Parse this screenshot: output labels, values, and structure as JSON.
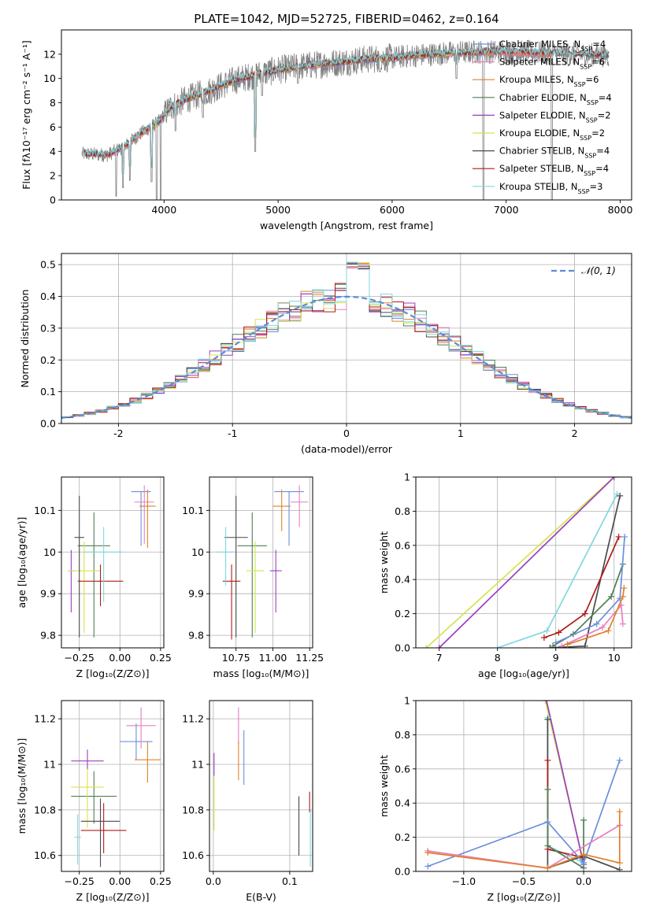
{
  "figure": {
    "title": "PLATE=1042, MJD=52725, FIBERID=0462, z=0.164"
  },
  "colors": {
    "chabrier_miles": "#6a8fdc",
    "salpeter_miles": "#e67fbf",
    "kroupa_miles": "#e0802a",
    "chabrier_elodie": "#4e7f55",
    "salpeter_elodie": "#9a3fc0",
    "kroupa_elodie": "#d7e34a",
    "chabrier_stelib": "#4a4a4a",
    "salpeter_stelib": "#b01b1b",
    "kroupa_stelib": "#7fd8df",
    "data": "#808080",
    "gauss": "#5b8bd8"
  },
  "chart_data": [
    {
      "id": "spectrum",
      "type": "line",
      "xlabel": "wavelength [Angstrom, rest frame]",
      "ylabel": "Flux [fλ10⁻¹⁷ erg cm⁻² s⁻¹ A⁻¹]",
      "xlim": [
        3100,
        8100
      ],
      "ylim": [
        0,
        14
      ],
      "xticks": [
        4000,
        5000,
        6000,
        7000,
        8000
      ],
      "yticks": [
        0,
        2,
        4,
        6,
        8,
        10,
        12
      ],
      "grid": false,
      "legend_position": "top-right",
      "legend": [
        {
          "label": "Chabrier MILES, N",
          "sub": "SSP",
          "tail": "=4",
          "key": "chabrier_miles"
        },
        {
          "label": "Salpeter MILES, N",
          "sub": "SSP",
          "tail": "=6",
          "key": "salpeter_miles"
        },
        {
          "label": "Kroupa MILES, N",
          "sub": "SSP",
          "tail": "=6",
          "key": "kroupa_miles"
        },
        {
          "label": "Chabrier ELODIE, N",
          "sub": "SSP",
          "tail": "=4",
          "key": "chabrier_elodie"
        },
        {
          "label": "Salpeter ELODIE, N",
          "sub": "SSP",
          "tail": "=2",
          "key": "salpeter_elodie"
        },
        {
          "label": "Kroupa ELODIE, N",
          "sub": "SSP",
          "tail": "=2",
          "key": "kroupa_elodie"
        },
        {
          "label": "Chabrier STELIB, N",
          "sub": "SSP",
          "tail": "=4",
          "key": "chabrier_stelib"
        },
        {
          "label": "Salpeter STELIB, N",
          "sub": "SSP",
          "tail": "=4",
          "key": "salpeter_stelib"
        },
        {
          "label": "Kroupa STELIB, N",
          "sub": "SSP",
          "tail": "=3",
          "key": "kroupa_stelib"
        }
      ],
      "continuum": [
        [
          3280,
          3.8
        ],
        [
          3500,
          3.7
        ],
        [
          3650,
          4.4
        ],
        [
          3800,
          5.5
        ],
        [
          3950,
          6.4
        ],
        [
          4050,
          7.6
        ],
        [
          4200,
          8.3
        ],
        [
          4400,
          9.0
        ],
        [
          4600,
          9.8
        ],
        [
          4800,
          10.3
        ],
        [
          5000,
          10.7
        ],
        [
          5200,
          11.0
        ],
        [
          5500,
          11.3
        ],
        [
          5800,
          11.6
        ],
        [
          6000,
          11.7
        ],
        [
          6200,
          11.9
        ],
        [
          6500,
          12.1
        ],
        [
          6800,
          12.2
        ],
        [
          7000,
          12.2
        ],
        [
          7300,
          12.1
        ],
        [
          7600,
          12.0
        ],
        [
          7900,
          11.9
        ]
      ],
      "dips": [
        [
          3580,
          0.3
        ],
        [
          3640,
          1.0
        ],
        [
          3700,
          1.6
        ],
        [
          3890,
          1.5
        ],
        [
          3935,
          0.0
        ],
        [
          3970,
          0.0
        ],
        [
          4100,
          5.7
        ],
        [
          4340,
          6.8
        ],
        [
          4800,
          4.0
        ],
        [
          4860,
          8.6
        ],
        [
          5175,
          9.6
        ],
        [
          5890,
          10.6
        ],
        [
          6563,
          10.0
        ],
        [
          6800,
          0.0
        ],
        [
          7400,
          0.0
        ]
      ]
    },
    {
      "id": "residuals",
      "type": "histogram",
      "xlabel": "(data-model)/error",
      "ylabel": "Normed distribution",
      "xlim": [
        -2.5,
        2.5
      ],
      "ylim": [
        0,
        0.535
      ],
      "xticks": [
        -2,
        -1,
        0,
        1,
        2
      ],
      "yticks": [
        0.0,
        0.1,
        0.2,
        0.3,
        0.4,
        0.5
      ],
      "grid": true,
      "legend_position": "top-right",
      "legend_label": "𝒩(0, 1)",
      "bin_width": 0.1
    },
    {
      "id": "age_vs_Z",
      "type": "errorbar",
      "xlabel": "Z [log₁₀(Z/Z⊙)]",
      "ylabel": "age  [log₁₀(age/yr)]",
      "xlim": [
        -0.36,
        0.27
      ],
      "ylim": [
        9.77,
        10.18
      ],
      "xticks": [
        -0.25,
        0.0,
        0.25
      ],
      "xticklabels": [
        "−0.25",
        "0.00",
        "0.25"
      ],
      "yticks": [
        9.8,
        9.9,
        10.0,
        10.1
      ],
      "grid": true,
      "points": [
        {
          "key": "chabrier_miles",
          "x": 0.13,
          "xerr": 0.06,
          "y": 10.145,
          "yerr": [
            0.13,
            0.0
          ]
        },
        {
          "key": "salpeter_miles",
          "x": 0.15,
          "xerr": 0.06,
          "y": 10.12,
          "yerr": [
            0.1,
            0.04
          ]
        },
        {
          "key": "kroupa_miles",
          "x": 0.17,
          "xerr": 0.05,
          "y": 10.11,
          "yerr": [
            0.1,
            0.04
          ]
        },
        {
          "key": "chabrier_elodie",
          "x": -0.16,
          "xerr": 0.1,
          "y": 10.015,
          "yerr": [
            0.22,
            0.08
          ]
        },
        {
          "key": "salpeter_elodie",
          "x": -0.3,
          "xerr": 0.02,
          "y": 9.955,
          "yerr": [
            0.1,
            0.05
          ]
        },
        {
          "key": "kroupa_elodie",
          "x": -0.22,
          "xerr": 0.1,
          "y": 9.955,
          "yerr": [
            0.15,
            0.07
          ]
        },
        {
          "key": "chabrier_stelib",
          "x": -0.25,
          "xerr": 0.03,
          "y": 10.035,
          "yerr": [
            0.24,
            0.1
          ]
        },
        {
          "key": "salpeter_stelib",
          "x": -0.12,
          "xerr": 0.14,
          "y": 9.93,
          "yerr": [
            0.06,
            0.04
          ]
        },
        {
          "key": "kroupa_stelib",
          "x": -0.1,
          "xerr": 0.12,
          "y": 10.0,
          "yerr": [
            0.12,
            0.06
          ]
        }
      ]
    },
    {
      "id": "age_vs_mass",
      "type": "errorbar",
      "xlabel": "mass [log₁₀(M/M⊙)]",
      "ylabel": "",
      "xlim": [
        10.57,
        11.27
      ],
      "ylim": [
        9.77,
        10.18
      ],
      "xticks": [
        10.75,
        11.0,
        11.25
      ],
      "xticklabels": [
        "10.75",
        "11.00",
        "11.25"
      ],
      "yticks": [
        9.8,
        9.9,
        10.0,
        10.1
      ],
      "grid": true,
      "points": [
        {
          "key": "chabrier_miles",
          "x": 11.11,
          "xerr": 0.1,
          "y": 10.145,
          "yerr": [
            0.13,
            0.0
          ]
        },
        {
          "key": "salpeter_miles",
          "x": 11.18,
          "xerr": 0.06,
          "y": 10.12,
          "yerr": [
            0.06,
            0.04
          ]
        },
        {
          "key": "kroupa_miles",
          "x": 11.06,
          "xerr": 0.06,
          "y": 10.11,
          "yerr": [
            0.06,
            0.04
          ]
        },
        {
          "key": "chabrier_elodie",
          "x": 10.86,
          "xerr": 0.1,
          "y": 10.015,
          "yerr": [
            0.22,
            0.08
          ]
        },
        {
          "key": "salpeter_elodie",
          "x": 11.02,
          "xerr": 0.04,
          "y": 9.955,
          "yerr": [
            0.1,
            0.05
          ]
        },
        {
          "key": "kroupa_elodie",
          "x": 10.88,
          "xerr": 0.06,
          "y": 9.955,
          "yerr": [
            0.15,
            0.07
          ]
        },
        {
          "key": "chabrier_stelib",
          "x": 10.75,
          "xerr": 0.08,
          "y": 10.035,
          "yerr": [
            0.24,
            0.1
          ]
        },
        {
          "key": "salpeter_stelib",
          "x": 10.72,
          "xerr": 0.06,
          "y": 9.93,
          "yerr": [
            0.14,
            0.04
          ]
        },
        {
          "key": "kroupa_stelib",
          "x": 10.68,
          "xerr": 0.06,
          "y": 10.0,
          "yerr": [
            0.08,
            0.06
          ]
        }
      ]
    },
    {
      "id": "weight_vs_age",
      "type": "line",
      "xlabel": "age  [log₁₀(age/yr)]",
      "ylabel": "mass weight",
      "xlim": [
        6.6,
        10.3
      ],
      "ylim": [
        0,
        1.0
      ],
      "xticks": [
        7,
        8,
        9,
        10
      ],
      "yticks": [
        0.0,
        0.2,
        0.4,
        0.6,
        0.8,
        1.0
      ],
      "grid": true,
      "series": [
        {
          "key": "kroupa_elodie",
          "x": [
            6.78,
            10.0
          ],
          "y": [
            0.0,
            1.0
          ]
        },
        {
          "key": "salpeter_elodie",
          "x": [
            7.0,
            10.0
          ],
          "y": [
            0.0,
            1.0
          ]
        },
        {
          "key": "kroupa_stelib",
          "x": [
            8.0,
            8.85,
            10.05
          ],
          "y": [
            0.0,
            0.1,
            0.9
          ]
        },
        {
          "key": "chabrier_stelib",
          "x": [
            8.9,
            9.5,
            10.1
          ],
          "y": [
            0.0,
            0.01,
            0.89
          ]
        },
        {
          "key": "salpeter_stelib",
          "x": [
            8.8,
            9.05,
            9.5,
            10.08
          ],
          "y": [
            0.06,
            0.09,
            0.2,
            0.65
          ]
        },
        {
          "key": "chabrier_elodie",
          "x": [
            8.95,
            9.3,
            9.95,
            10.15
          ],
          "y": [
            0.01,
            0.08,
            0.3,
            0.49
          ]
        },
        {
          "key": "chabrier_miles",
          "x": [
            9.0,
            9.7,
            10.1,
            10.18
          ],
          "y": [
            0.03,
            0.14,
            0.29,
            0.65
          ]
        },
        {
          "key": "salpeter_miles",
          "x": [
            9.1,
            9.8,
            10.12,
            10.15
          ],
          "y": [
            0.01,
            0.12,
            0.25,
            0.14
          ]
        },
        {
          "key": "kroupa_miles",
          "x": [
            9.2,
            9.9,
            10.15,
            10.17
          ],
          "y": [
            0.02,
            0.1,
            0.3,
            0.35
          ]
        }
      ]
    },
    {
      "id": "mass_vs_Z",
      "type": "errorbar",
      "xlabel": "Z [log₁₀(Z/Z⊙)]",
      "ylabel": "mass [log₁₀(M/M⊙)]",
      "xlim": [
        -0.36,
        0.27
      ],
      "ylim": [
        10.53,
        11.28
      ],
      "xticks": [
        -0.25,
        0.0,
        0.25
      ],
      "xticklabels": [
        "−0.25",
        "0.00",
        "0.25"
      ],
      "yticks": [
        10.6,
        10.8,
        11.0,
        11.2
      ],
      "grid": true,
      "points": [
        {
          "key": "chabrier_miles",
          "x": 0.1,
          "xerr": 0.1,
          "y": 11.1,
          "yerr": [
            0.08,
            0.08
          ]
        },
        {
          "key": "salpeter_miles",
          "x": 0.13,
          "xerr": 0.09,
          "y": 11.17,
          "yerr": [
            0.1,
            0.08
          ]
        },
        {
          "key": "kroupa_miles",
          "x": 0.17,
          "xerr": 0.08,
          "y": 11.02,
          "yerr": [
            0.1,
            0.08
          ]
        },
        {
          "key": "chabrier_elodie",
          "x": -0.16,
          "xerr": 0.14,
          "y": 10.86,
          "yerr": [
            0.12,
            0.11
          ]
        },
        {
          "key": "salpeter_elodie",
          "x": -0.2,
          "xerr": 0.1,
          "y": 11.015,
          "yerr": [
            0.04,
            0.05
          ]
        },
        {
          "key": "kroupa_elodie",
          "x": -0.2,
          "xerr": 0.1,
          "y": 10.9,
          "yerr": [
            0.18,
            0.08
          ]
        },
        {
          "key": "chabrier_stelib",
          "x": -0.12,
          "xerr": 0.12,
          "y": 10.75,
          "yerr": [
            0.2,
            0.1
          ]
        },
        {
          "key": "salpeter_stelib",
          "x": -0.1,
          "xerr": 0.14,
          "y": 10.71,
          "yerr": [
            0.1,
            0.12
          ]
        },
        {
          "key": "kroupa_stelib",
          "x": -0.26,
          "xerr": 0.02,
          "y": 10.68,
          "yerr": [
            0.12,
            0.1
          ]
        }
      ]
    },
    {
      "id": "mass_vs_ebv",
      "type": "errorbar",
      "xlabel": "E(B-V)",
      "ylabel": "",
      "xlim": [
        -0.005,
        0.13
      ],
      "ylim": [
        10.53,
        11.28
      ],
      "xticks": [
        0.0,
        0.1
      ],
      "xticklabels": [
        "0.0",
        "0.1"
      ],
      "yticks": [
        10.6,
        10.8,
        11.0,
        11.2
      ],
      "grid": true,
      "points": [
        {
          "key": "salpeter_miles",
          "x": 0.033,
          "xerr": 0.0,
          "y": 11.17,
          "yerr": [
            0.08,
            0.08
          ]
        },
        {
          "key": "chabrier_miles",
          "x": 0.04,
          "xerr": 0.0,
          "y": 11.03,
          "yerr": [
            0.12,
            0.12
          ]
        },
        {
          "key": "kroupa_miles",
          "x": 0.033,
          "xerr": 0.0,
          "y": 11.02,
          "yerr": [
            0.09,
            0.08
          ]
        },
        {
          "key": "salpeter_elodie",
          "x": 0.001,
          "xerr": 0.0,
          "y": 11.0,
          "yerr": [
            0.05,
            0.05
          ]
        },
        {
          "key": "kroupa_elodie",
          "x": 0.001,
          "xerr": 0.0,
          "y": 10.85,
          "yerr": [
            0.14,
            0.1
          ]
        },
        {
          "key": "chabrier_stelib",
          "x": 0.112,
          "xerr": 0.0,
          "y": 10.73,
          "yerr": [
            0.13,
            0.13
          ]
        },
        {
          "key": "salpeter_stelib",
          "x": 0.126,
          "xerr": 0.0,
          "y": 10.84,
          "yerr": [
            0.05,
            0.04
          ]
        },
        {
          "key": "kroupa_stelib",
          "x": 0.127,
          "xerr": 0.0,
          "y": 10.7,
          "yerr": [
            0.15,
            0.1
          ]
        }
      ]
    },
    {
      "id": "weight_vs_Z",
      "type": "line",
      "xlabel": "Z [log₁₀(Z/Z⊙)]",
      "ylabel": "mass weight",
      "xlim": [
        -1.4,
        0.4
      ],
      "ylim": [
        0,
        1.0
      ],
      "xticks": [
        -1.0,
        -0.5,
        0.0
      ],
      "xticklabels": [
        "−1.0",
        "−0.5",
        "0.0"
      ],
      "yticks": [
        0.0,
        0.2,
        0.4,
        0.6,
        0.8,
        1.0
      ],
      "grid": true,
      "series": [
        {
          "key": "kroupa_elodie",
          "x": [
            -0.32,
            0.0
          ],
          "y": [
            1.0,
            0.05
          ]
        },
        {
          "key": "salpeter_elodie",
          "x": [
            -0.31,
            0.0
          ],
          "y": [
            1.0,
            0.04
          ]
        },
        {
          "key": "kroupa_stelib",
          "x": [
            -0.3,
            -0.3,
            0.0
          ],
          "y": [
            0.9,
            0.15,
            0.05
          ]
        },
        {
          "key": "chabrier_stelib",
          "x": [
            -0.3,
            -0.3,
            0.0,
            0.3
          ],
          "y": [
            0.89,
            0.02,
            0.09,
            0.01
          ]
        },
        {
          "key": "salpeter_stelib",
          "x": [
            -0.3,
            -0.3,
            0.0
          ],
          "y": [
            0.65,
            0.13,
            0.08
          ]
        },
        {
          "key": "chabrier_elodie",
          "x": [
            -0.3,
            -0.3,
            0.0,
            0.0
          ],
          "y": [
            0.48,
            0.15,
            0.02,
            0.3
          ]
        },
        {
          "key": "chabrier_miles",
          "x": [
            -1.3,
            -0.3,
            0.0,
            0.3
          ],
          "y": [
            0.03,
            0.29,
            0.05,
            0.65
          ]
        },
        {
          "key": "salpeter_miles",
          "x": [
            -1.3,
            -0.3,
            0.3
          ],
          "y": [
            0.12,
            0.02,
            0.27
          ]
        },
        {
          "key": "kroupa_miles",
          "x": [
            -1.3,
            -0.3,
            0.0,
            0.3,
            0.3
          ],
          "y": [
            0.11,
            0.02,
            0.1,
            0.05,
            0.35
          ]
        }
      ]
    }
  ]
}
